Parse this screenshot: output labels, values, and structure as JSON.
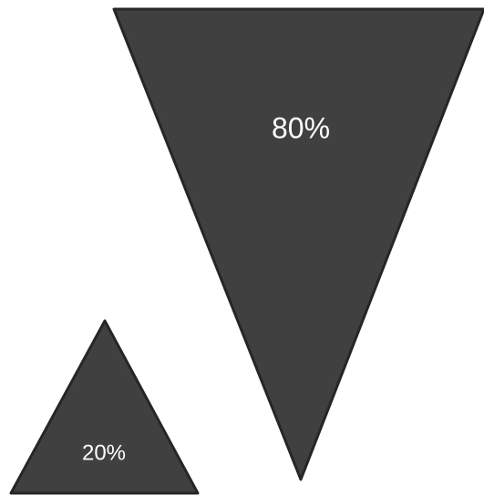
{
  "colors": {
    "fill": "#404040",
    "stroke": "#262626",
    "text": "#ffffff"
  },
  "shapes": [
    {
      "name": "large-inverted-triangle",
      "label": "80%",
      "value": 80
    },
    {
      "name": "small-upright-triangle",
      "label": "20%",
      "value": 20
    }
  ]
}
